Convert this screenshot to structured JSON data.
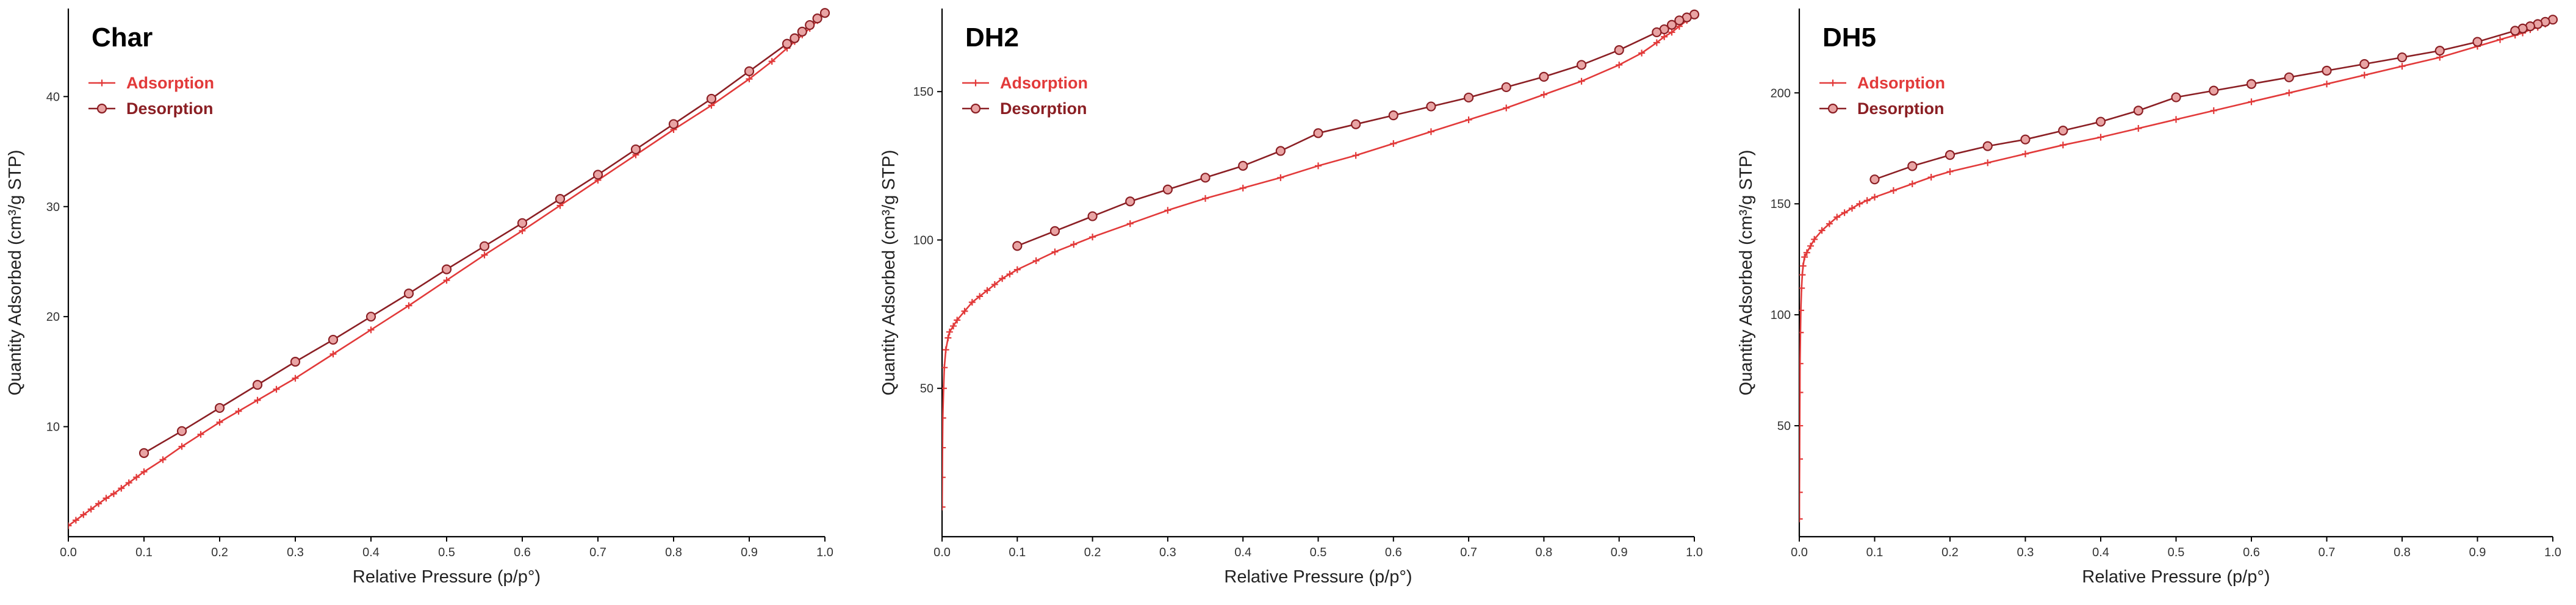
{
  "colors": {
    "adsorption": "#e23a3a",
    "desorption": "#8b1f24",
    "desorption_marker_fill": "#e9a4a4",
    "axis": "#000000",
    "text": "#333333"
  },
  "chart_data": [
    {
      "type": "line",
      "title": "Char",
      "xlabel": "Relative Pressure (p/p°)",
      "ylabel": "Quantity Adsorbed (cm³/g STP)",
      "xlim": [
        0,
        1.0
      ],
      "ylim": [
        0,
        48
      ],
      "xticks": [
        0.0,
        0.1,
        0.2,
        0.3,
        0.4,
        0.5,
        0.6,
        0.7,
        0.8,
        0.9,
        1.0
      ],
      "xtick_labels": [
        "0.0",
        "0.1",
        "0.2",
        "0.3",
        "0.4",
        "0.5",
        "0.6",
        "0.7",
        "0.8",
        "0.9",
        "1.0"
      ],
      "yticks": [
        10,
        20,
        30,
        40
      ],
      "ytick_labels": [
        "10",
        "20",
        "30",
        "40"
      ],
      "legend": [
        "Adsorption",
        "Desorption"
      ],
      "series": [
        {
          "name": "Adsorption",
          "x": [
            0.0,
            0.01,
            0.02,
            0.03,
            0.04,
            0.05,
            0.06,
            0.07,
            0.08,
            0.09,
            0.1,
            0.125,
            0.15,
            0.175,
            0.2,
            0.225,
            0.25,
            0.275,
            0.3,
            0.35,
            0.4,
            0.45,
            0.5,
            0.55,
            0.6,
            0.65,
            0.7,
            0.75,
            0.8,
            0.85,
            0.9,
            0.93,
            0.95,
            0.96,
            0.97,
            0.98,
            0.99,
            1.0
          ],
          "y": [
            1.0,
            1.5,
            2.0,
            2.5,
            3.0,
            3.5,
            3.9,
            4.4,
            4.9,
            5.4,
            5.9,
            7.0,
            8.2,
            9.3,
            10.4,
            11.4,
            12.4,
            13.4,
            14.4,
            16.6,
            18.8,
            21.0,
            23.3,
            25.6,
            27.8,
            30.1,
            32.4,
            34.7,
            37.0,
            39.2,
            41.6,
            43.2,
            44.4,
            45.0,
            45.6,
            46.2,
            46.9,
            47.6
          ]
        },
        {
          "name": "Desorption",
          "x": [
            1.0,
            0.99,
            0.98,
            0.97,
            0.96,
            0.95,
            0.9,
            0.85,
            0.8,
            0.75,
            0.7,
            0.65,
            0.6,
            0.55,
            0.5,
            0.45,
            0.4,
            0.35,
            0.3,
            0.25,
            0.2,
            0.15,
            0.1
          ],
          "y": [
            47.6,
            47.1,
            46.5,
            45.9,
            45.3,
            44.8,
            42.3,
            39.8,
            37.5,
            35.2,
            32.9,
            30.7,
            28.5,
            26.4,
            24.3,
            22.1,
            20.0,
            17.9,
            15.9,
            13.8,
            11.7,
            9.6,
            7.6
          ]
        }
      ]
    },
    {
      "type": "line",
      "title": "DH2",
      "xlabel": "Relative Pressure (p/p°)",
      "ylabel": "Quantity Adsorbed (cm³/g STP)",
      "xlim": [
        0,
        1.0
      ],
      "ylim": [
        0,
        178
      ],
      "xticks": [
        0.0,
        0.1,
        0.2,
        0.3,
        0.4,
        0.5,
        0.6,
        0.7,
        0.8,
        0.9,
        1.0
      ],
      "xtick_labels": [
        "0.0",
        "0.1",
        "0.2",
        "0.3",
        "0.4",
        "0.5",
        "0.6",
        "0.7",
        "0.8",
        "0.9",
        "1.0"
      ],
      "yticks": [
        50,
        100,
        150
      ],
      "ytick_labels": [
        "50",
        "100",
        "150"
      ],
      "legend": [
        "Adsorption",
        "Desorption"
      ],
      "series": [
        {
          "name": "Adsorption",
          "x": [
            0.0001,
            0.0003,
            0.0006,
            0.001,
            0.002,
            0.003,
            0.005,
            0.008,
            0.01,
            0.015,
            0.02,
            0.03,
            0.04,
            0.05,
            0.06,
            0.07,
            0.08,
            0.09,
            0.1,
            0.125,
            0.15,
            0.175,
            0.2,
            0.25,
            0.3,
            0.35,
            0.4,
            0.45,
            0.5,
            0.55,
            0.6,
            0.65,
            0.7,
            0.75,
            0.8,
            0.85,
            0.9,
            0.93,
            0.95,
            0.96,
            0.97,
            0.98,
            0.99,
            1.0
          ],
          "y": [
            10,
            20,
            30,
            40,
            50,
            57,
            63,
            67,
            69,
            71,
            73,
            76,
            79,
            81,
            83,
            85,
            87,
            88.5,
            90,
            93,
            96,
            98.5,
            101,
            105.5,
            110,
            114,
            117.5,
            121,
            125,
            128.5,
            132.5,
            136.5,
            140.5,
            144.5,
            149,
            153.5,
            159,
            163,
            166.5,
            168.5,
            170,
            172,
            174,
            176
          ]
        },
        {
          "name": "Desorption",
          "x": [
            1.0,
            0.99,
            0.98,
            0.97,
            0.96,
            0.95,
            0.9,
            0.85,
            0.8,
            0.75,
            0.7,
            0.65,
            0.6,
            0.55,
            0.5,
            0.45,
            0.4,
            0.35,
            0.3,
            0.25,
            0.2,
            0.15,
            0.1
          ],
          "y": [
            176,
            175,
            174,
            172.5,
            171,
            170,
            164,
            159,
            155,
            151.5,
            148,
            145,
            142,
            139,
            136,
            130,
            125,
            121,
            117,
            113,
            108,
            103,
            98
          ]
        }
      ]
    },
    {
      "type": "line",
      "title": "DH5",
      "xlabel": "Relative Pressure (p/p°)",
      "ylabel": "Quantity Adsorbed (cm³/g STP)",
      "xlim": [
        0,
        1.0
      ],
      "ylim": [
        0,
        238
      ],
      "xticks": [
        0.0,
        0.1,
        0.2,
        0.3,
        0.4,
        0.5,
        0.6,
        0.7,
        0.8,
        0.9,
        1.0
      ],
      "xtick_labels": [
        "0.0",
        "0.1",
        "0.2",
        "0.3",
        "0.4",
        "0.5",
        "0.6",
        "0.7",
        "0.8",
        "0.9",
        "1.0"
      ],
      "yticks": [
        50,
        100,
        150,
        200
      ],
      "ytick_labels": [
        "50",
        "100",
        "150",
        "200"
      ],
      "legend": [
        "Adsorption",
        "Desorption"
      ],
      "series": [
        {
          "name": "Adsorption",
          "x": [
            0.0001,
            0.0002,
            0.0004,
            0.0006,
            0.0008,
            0.001,
            0.0015,
            0.002,
            0.003,
            0.004,
            0.005,
            0.007,
            0.01,
            0.015,
            0.02,
            0.03,
            0.04,
            0.05,
            0.06,
            0.07,
            0.08,
            0.09,
            0.1,
            0.125,
            0.15,
            0.175,
            0.2,
            0.25,
            0.3,
            0.35,
            0.4,
            0.45,
            0.5,
            0.55,
            0.6,
            0.65,
            0.7,
            0.75,
            0.8,
            0.85,
            0.9,
            0.93,
            0.95,
            0.96,
            0.97,
            0.98,
            0.99,
            1.0
          ],
          "y": [
            8,
            20,
            35,
            50,
            65,
            78,
            92,
            102,
            112,
            118,
            122,
            126,
            128,
            131,
            134,
            138,
            141,
            144,
            146,
            148,
            150,
            151.5,
            153,
            156,
            159,
            162,
            164.5,
            168.5,
            172.5,
            176.5,
            180,
            184,
            188,
            192,
            196,
            200,
            204,
            208,
            212,
            216,
            221,
            224,
            226,
            227,
            228.5,
            229.5,
            231,
            233
          ]
        },
        {
          "name": "Desorption",
          "x": [
            1.0,
            0.99,
            0.98,
            0.97,
            0.96,
            0.95,
            0.9,
            0.85,
            0.8,
            0.75,
            0.7,
            0.65,
            0.6,
            0.55,
            0.5,
            0.45,
            0.4,
            0.35,
            0.3,
            0.25,
            0.2,
            0.15,
            0.1
          ],
          "y": [
            233,
            232,
            231,
            230,
            229,
            228,
            223,
            219,
            216,
            213,
            210,
            207,
            204,
            201,
            198,
            192,
            187,
            183,
            179,
            176,
            172,
            167,
            161
          ]
        }
      ]
    }
  ]
}
